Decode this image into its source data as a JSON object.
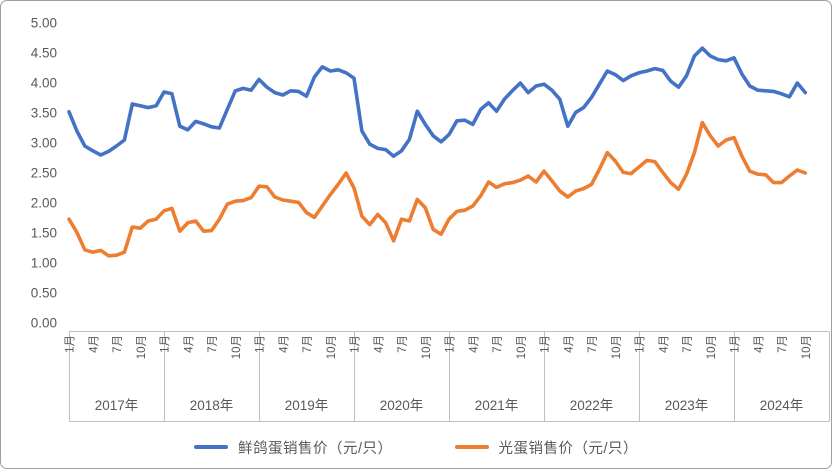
{
  "chart_data": {
    "type": "line",
    "title": "",
    "grid": false,
    "legend_position": "bottom",
    "x_axis": {
      "start": "2017-01",
      "end": "2024-10",
      "years": [
        "2017年",
        "2018年",
        "2019年",
        "2020年",
        "2021年",
        "2022年",
        "2023年",
        "2024年"
      ],
      "month_tick_labels": [
        "1月",
        "4月",
        "7月",
        "10月"
      ],
      "month_tick_offsets": [
        0,
        3,
        6,
        9
      ],
      "months_per_year": 12,
      "total_categories": 96
    },
    "y_axis": {
      "min": 0,
      "max": 5,
      "step": 0.5,
      "tick_labels": [
        "0.00",
        "0.50",
        "1.00",
        "1.50",
        "2.00",
        "2.50",
        "3.00",
        "3.50",
        "4.00",
        "4.50",
        "5.00"
      ]
    },
    "series": [
      {
        "name": "鲜鸽蛋销售价（元/只）",
        "color": "#4472C4",
        "values": [
          3.52,
          3.2,
          2.95,
          2.87,
          2.8,
          2.86,
          2.95,
          3.05,
          3.65,
          3.62,
          3.59,
          3.62,
          3.85,
          3.82,
          3.28,
          3.22,
          3.36,
          3.32,
          3.27,
          3.25,
          3.56,
          3.87,
          3.91,
          3.88,
          4.06,
          3.93,
          3.84,
          3.8,
          3.87,
          3.86,
          3.78,
          4.1,
          4.27,
          4.2,
          4.22,
          4.17,
          4.08,
          3.2,
          2.98,
          2.91,
          2.89,
          2.78,
          2.87,
          3.06,
          3.53,
          3.31,
          3.12,
          3.02,
          3.14,
          3.37,
          3.38,
          3.31,
          3.56,
          3.67,
          3.53,
          3.73,
          3.87,
          4.0,
          3.84,
          3.95,
          3.98,
          3.88,
          3.73,
          3.28,
          3.51,
          3.59,
          3.76,
          3.98,
          4.2,
          4.14,
          4.04,
          4.12,
          4.17,
          4.2,
          4.24,
          4.21,
          4.03,
          3.93,
          4.12,
          4.45,
          4.58,
          4.45,
          4.39,
          4.37,
          4.42,
          4.15,
          3.95,
          3.88,
          3.87,
          3.86,
          3.82,
          3.77,
          4.0,
          3.84
        ]
      },
      {
        "name": "光蛋销售价（元/只）",
        "color": "#ED7D31",
        "values": [
          1.73,
          1.51,
          1.22,
          1.18,
          1.21,
          1.12,
          1.13,
          1.18,
          1.6,
          1.58,
          1.7,
          1.73,
          1.87,
          1.91,
          1.53,
          1.67,
          1.7,
          1.53,
          1.54,
          1.73,
          1.98,
          2.03,
          2.04,
          2.09,
          2.28,
          2.27,
          2.1,
          2.05,
          2.03,
          2.01,
          1.84,
          1.76,
          1.95,
          2.14,
          2.31,
          2.5,
          2.25,
          1.78,
          1.64,
          1.81,
          1.67,
          1.37,
          1.73,
          1.7,
          2.06,
          1.92,
          1.56,
          1.48,
          1.73,
          1.86,
          1.88,
          1.95,
          2.12,
          2.35,
          2.26,
          2.32,
          2.34,
          2.38,
          2.45,
          2.35,
          2.53,
          2.37,
          2.2,
          2.1,
          2.2,
          2.24,
          2.31,
          2.56,
          2.84,
          2.7,
          2.51,
          2.49,
          2.6,
          2.71,
          2.69,
          2.51,
          2.34,
          2.23,
          2.48,
          2.84,
          3.34,
          3.12,
          2.95,
          3.05,
          3.09,
          2.78,
          2.53,
          2.48,
          2.47,
          2.34,
          2.34,
          2.45,
          2.55,
          2.5
        ]
      }
    ]
  },
  "colors": {
    "axis_text": "#595959",
    "axis_line": "#bfbfbf",
    "background": "#ffffff"
  }
}
